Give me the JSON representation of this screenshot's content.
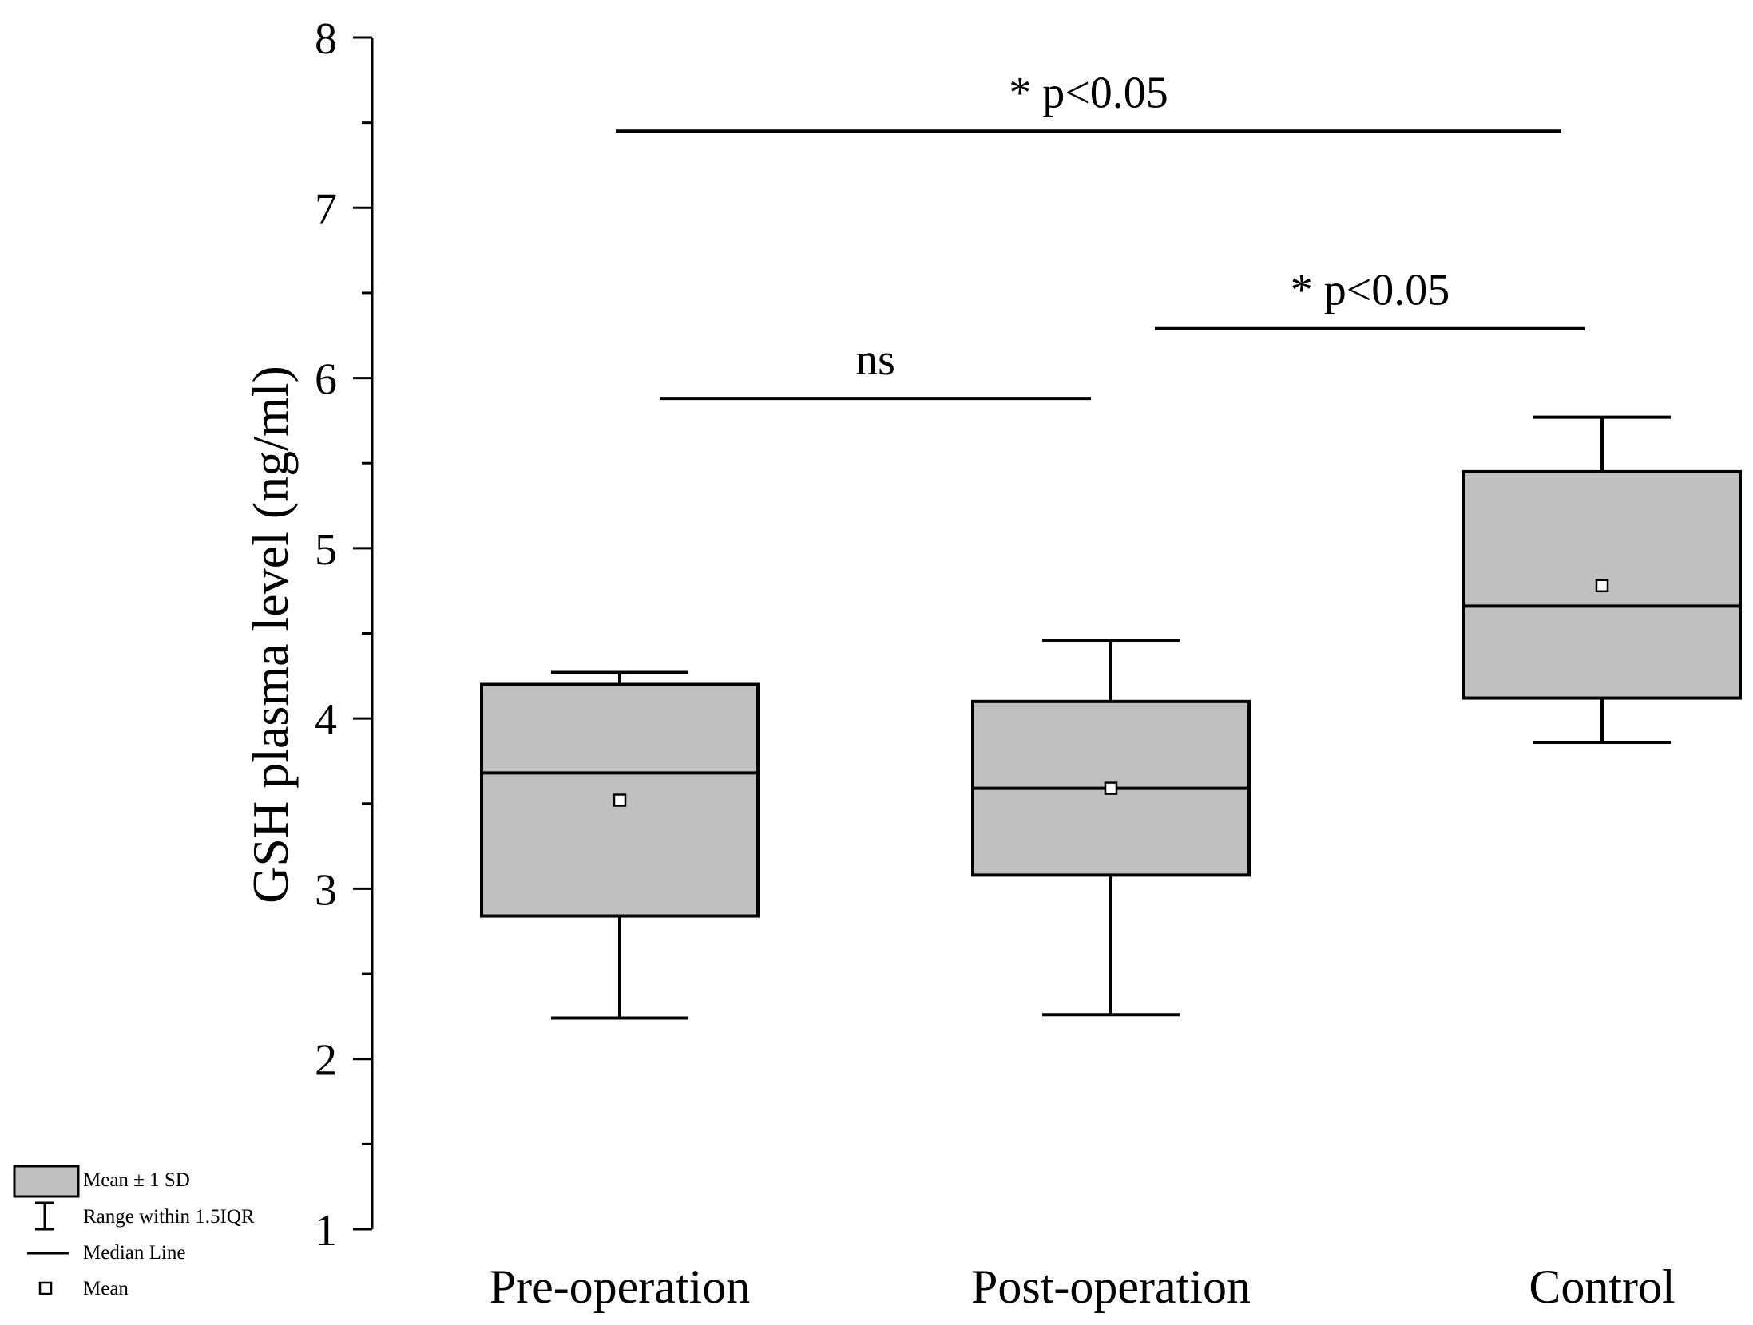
{
  "chart_data": {
    "type": "box",
    "ylabel": "GSH plasma level (ng/ml)",
    "xlabel": "",
    "ylim": [
      1,
      8
    ],
    "yticks": [
      1,
      2,
      3,
      4,
      5,
      6,
      7,
      8
    ],
    "categories": [
      "Pre-operation",
      "Post-operation",
      "Control"
    ],
    "boxes": [
      {
        "name": "Pre-operation",
        "whisker_low": 2.24,
        "box_low": 2.84,
        "median": 3.68,
        "box_high": 4.2,
        "whisker_high": 4.27,
        "mean": 3.52
      },
      {
        "name": "Post-operation",
        "whisker_low": 2.26,
        "box_low": 3.08,
        "median": 3.59,
        "box_high": 4.1,
        "whisker_high": 4.46,
        "mean": 3.59
      },
      {
        "name": "Control",
        "whisker_low": 3.86,
        "box_low": 4.12,
        "median": 4.66,
        "box_high": 5.45,
        "whisker_high": 5.77,
        "mean": 4.78
      }
    ],
    "significance": [
      {
        "from": 0,
        "to": 1,
        "y": 5.88,
        "label": "ns"
      },
      {
        "from": 1,
        "to": 2,
        "y": 6.29,
        "label": "* p<0.05"
      },
      {
        "from": 0,
        "to": 2,
        "y": 7.45,
        "label": "* p<0.05"
      }
    ],
    "legend": {
      "box": "Mean ± 1 SD",
      "whisker": "Range within 1.5IQR",
      "median": "Median Line",
      "mean": "Mean"
    },
    "colors": {
      "box_fill": "#c0c0c0",
      "stroke": "#000000"
    }
  }
}
